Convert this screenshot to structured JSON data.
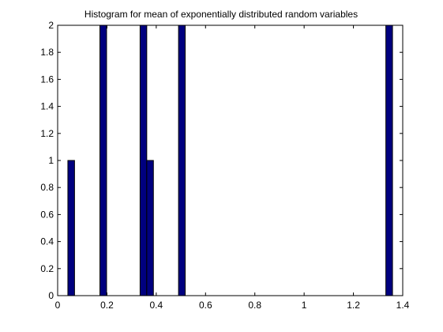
{
  "chart_data": {
    "type": "bar",
    "title": "Histogram for mean of exponentially distributed random variables",
    "xlabel": "",
    "ylabel": "",
    "xlim": [
      0,
      1.4
    ],
    "ylim": [
      0,
      2
    ],
    "grid": false,
    "legend": "none",
    "bar_width": 0.027,
    "bars": [
      {
        "x": 0.055,
        "value": 1
      },
      {
        "x": 0.185,
        "value": 2
      },
      {
        "x": 0.348,
        "value": 2
      },
      {
        "x": 0.375,
        "value": 1
      },
      {
        "x": 0.504,
        "value": 2
      },
      {
        "x": 1.345,
        "value": 2
      }
    ],
    "x_ticks": [
      "0",
      "0.2",
      "0.4",
      "0.6",
      "0.8",
      "1",
      "1.2",
      "1.4"
    ],
    "x_tick_values": [
      0,
      0.2,
      0.4,
      0.6,
      0.8,
      1,
      1.2,
      1.4
    ],
    "y_ticks": [
      "0",
      "0.2",
      "0.4",
      "0.6",
      "0.8",
      "1",
      "1.2",
      "1.4",
      "1.6",
      "1.8",
      "2"
    ],
    "y_tick_values": [
      0,
      0.2,
      0.4,
      0.6,
      0.8,
      1,
      1.2,
      1.4,
      1.6,
      1.8,
      2
    ],
    "colors": {
      "bar_fill": "#00007f",
      "bar_edge": "#000000",
      "axes": "#000000",
      "background": "#ffffff"
    }
  }
}
